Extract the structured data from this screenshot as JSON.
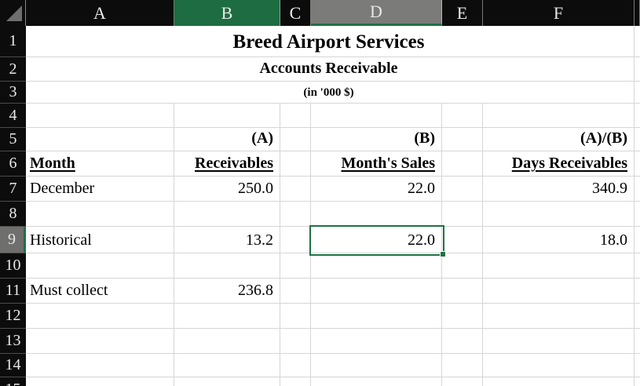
{
  "colors": {
    "header_bg": "#0c0c0c",
    "header_text": "#e9e9e9",
    "selected_column_green": "#1e6c41",
    "active_column_gray": "#7b7b79",
    "active_row_gray": "#6f6f6d",
    "selection_green": "#1f7145",
    "gridline": "#d6d6d6",
    "cell_bg": "#ffffff",
    "cell_text": "#000000"
  },
  "columns": [
    {
      "label": "A",
      "width": 189,
      "state": "normal"
    },
    {
      "label": "B",
      "width": 135,
      "state": "selected"
    },
    {
      "label": "C",
      "width": 39,
      "state": "normal"
    },
    {
      "label": "D",
      "width": 167,
      "state": "active"
    },
    {
      "label": "E",
      "width": 52,
      "state": "normal"
    },
    {
      "label": "F",
      "width": 193,
      "state": "normal"
    },
    {
      "label": "",
      "width": 7,
      "state": "normal"
    }
  ],
  "rows": [
    {
      "label": "1",
      "height": 40,
      "state": "normal"
    },
    {
      "label": "2",
      "height": 31,
      "state": "normal"
    },
    {
      "label": "3",
      "height": 28,
      "state": "normal"
    },
    {
      "label": "4",
      "height": 31,
      "state": "normal"
    },
    {
      "label": "5",
      "height": 30,
      "state": "normal"
    },
    {
      "label": "6",
      "height": 32,
      "state": "normal"
    },
    {
      "label": "7",
      "height": 32,
      "state": "normal"
    },
    {
      "label": "8",
      "height": 32,
      "state": "normal"
    },
    {
      "label": "9",
      "height": 34,
      "state": "active"
    },
    {
      "label": "10",
      "height": 32,
      "state": "normal"
    },
    {
      "label": "11",
      "height": 32,
      "state": "normal"
    },
    {
      "label": "12",
      "height": 32,
      "state": "normal"
    },
    {
      "label": "13",
      "height": 32,
      "state": "normal"
    },
    {
      "label": "14",
      "height": 30,
      "state": "normal"
    },
    {
      "label": "15",
      "height": 32,
      "state": "normal"
    }
  ],
  "merged_rows": [
    {
      "row": 1,
      "text": "Breed Airport Services",
      "font_size": 25
    },
    {
      "row": 2,
      "text": "Accounts Receivable",
      "font_size": 20
    },
    {
      "row": 3,
      "text": "(in '000 $)",
      "font_size": 15
    }
  ],
  "cells": [
    {
      "row": 5,
      "col": "B",
      "text": "(A)",
      "bold": true,
      "underline": false,
      "align": "right"
    },
    {
      "row": 5,
      "col": "D",
      "text": "(B)",
      "bold": true,
      "underline": false,
      "align": "right"
    },
    {
      "row": 5,
      "col": "F",
      "text": "(A)/(B)",
      "bold": true,
      "underline": false,
      "align": "right"
    },
    {
      "row": 6,
      "col": "A",
      "text": "Month",
      "bold": true,
      "underline": true,
      "align": "left"
    },
    {
      "row": 6,
      "col": "B",
      "text": "Receivables",
      "bold": true,
      "underline": true,
      "align": "right"
    },
    {
      "row": 6,
      "col": "D",
      "text": "Month's Sales",
      "bold": true,
      "underline": true,
      "align": "right"
    },
    {
      "row": 6,
      "col": "F",
      "text": "Days Receivables",
      "bold": true,
      "underline": true,
      "align": "right"
    },
    {
      "row": 7,
      "col": "A",
      "text": "December",
      "bold": false,
      "underline": false,
      "align": "left"
    },
    {
      "row": 7,
      "col": "B",
      "text": "250.0",
      "bold": false,
      "underline": false,
      "align": "right"
    },
    {
      "row": 7,
      "col": "D",
      "text": "22.0",
      "bold": false,
      "underline": false,
      "align": "right"
    },
    {
      "row": 7,
      "col": "F",
      "text": "340.9",
      "bold": false,
      "underline": false,
      "align": "right"
    },
    {
      "row": 9,
      "col": "A",
      "text": "Historical",
      "bold": false,
      "underline": false,
      "align": "left"
    },
    {
      "row": 9,
      "col": "B",
      "text": "13.2",
      "bold": false,
      "underline": false,
      "align": "right"
    },
    {
      "row": 9,
      "col": "D",
      "text": "22.0",
      "bold": false,
      "underline": false,
      "align": "right"
    },
    {
      "row": 9,
      "col": "F",
      "text": "18.0",
      "bold": false,
      "underline": false,
      "align": "right"
    },
    {
      "row": 11,
      "col": "A",
      "text": "Must collect",
      "bold": false,
      "underline": false,
      "align": "left"
    },
    {
      "row": 11,
      "col": "B",
      "text": "236.8",
      "bold": false,
      "underline": false,
      "align": "right"
    }
  ],
  "selection": {
    "active_cell": "D9",
    "active_value": "22.0"
  }
}
